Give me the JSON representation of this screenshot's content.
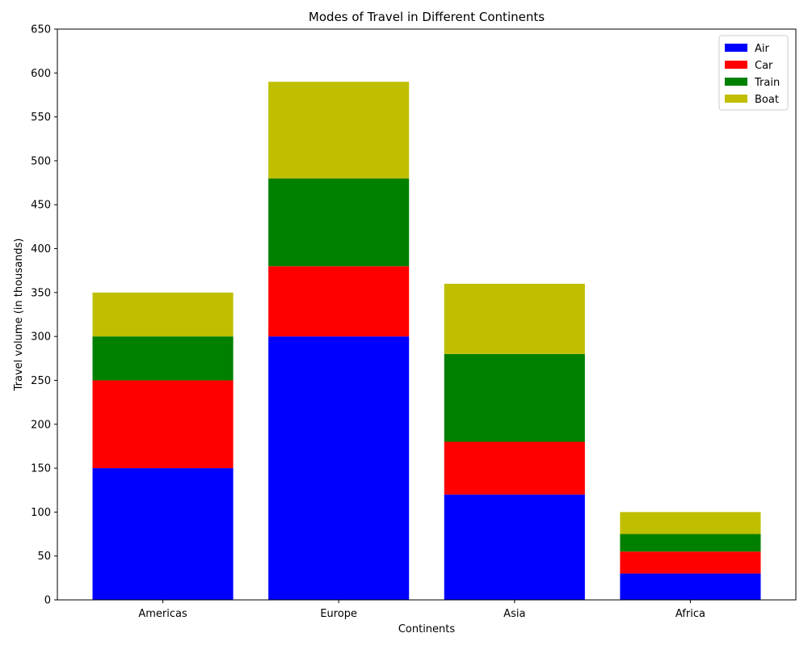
{
  "chart_data": {
    "type": "bar",
    "stacked": true,
    "title": "Modes of Travel in Different Continents",
    "xlabel": "Continents",
    "ylabel": "Travel volume (in thousands)",
    "categories": [
      "Americas",
      "Europe",
      "Asia",
      "Africa"
    ],
    "series": [
      {
        "name": "Air",
        "color": "#0000ff",
        "values": [
          150,
          300,
          120,
          30
        ]
      },
      {
        "name": "Car",
        "color": "#ff0000",
        "values": [
          100,
          80,
          60,
          25
        ]
      },
      {
        "name": "Train",
        "color": "#008000",
        "values": [
          50,
          100,
          100,
          20
        ]
      },
      {
        "name": "Boat",
        "color": "#bfbf00",
        "values": [
          50,
          110,
          80,
          25
        ]
      }
    ],
    "ylim": [
      0,
      650
    ],
    "yticks": [
      0,
      50,
      100,
      150,
      200,
      250,
      300,
      350,
      400,
      450,
      500,
      550,
      600,
      650
    ],
    "grid": false,
    "legend_position": "top-right"
  }
}
